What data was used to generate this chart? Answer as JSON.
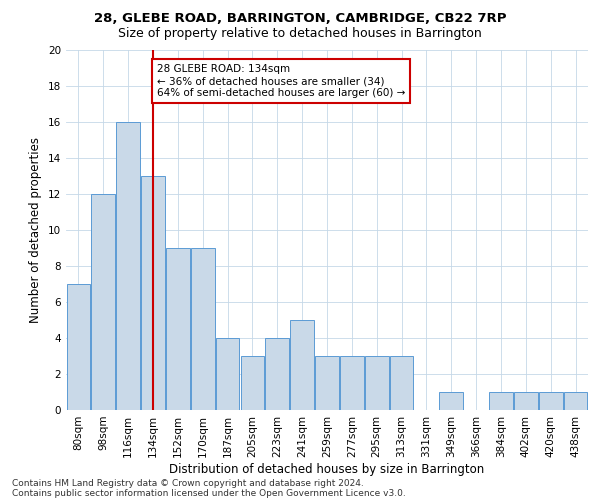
{
  "title1": "28, GLEBE ROAD, BARRINGTON, CAMBRIDGE, CB22 7RP",
  "title2": "Size of property relative to detached houses in Barrington",
  "xlabel": "Distribution of detached houses by size in Barrington",
  "ylabel": "Number of detached properties",
  "footnote1": "Contains HM Land Registry data © Crown copyright and database right 2024.",
  "footnote2": "Contains public sector information licensed under the Open Government Licence v3.0.",
  "categories": [
    "80sqm",
    "98sqm",
    "116sqm",
    "134sqm",
    "152sqm",
    "170sqm",
    "187sqm",
    "205sqm",
    "223sqm",
    "241sqm",
    "259sqm",
    "277sqm",
    "295sqm",
    "313sqm",
    "331sqm",
    "349sqm",
    "366sqm",
    "384sqm",
    "402sqm",
    "420sqm",
    "438sqm"
  ],
  "values": [
    7,
    12,
    16,
    13,
    9,
    9,
    4,
    3,
    4,
    5,
    3,
    3,
    3,
    3,
    0,
    1,
    0,
    1,
    1,
    1,
    1
  ],
  "bar_color": "#c9d9e8",
  "bar_edge_color": "#5b9bd5",
  "highlight_index": 3,
  "highlight_line_color": "#cc0000",
  "ylim": [
    0,
    20
  ],
  "yticks": [
    0,
    2,
    4,
    6,
    8,
    10,
    12,
    14,
    16,
    18,
    20
  ],
  "annotation_text": "28 GLEBE ROAD: 134sqm\n← 36% of detached houses are smaller (34)\n64% of semi-detached houses are larger (60) →",
  "annotation_box_color": "#ffffff",
  "annotation_box_edge": "#cc0000",
  "bg_color": "#ffffff",
  "grid_color": "#c5d8e8",
  "title_fontsize": 9.5,
  "subtitle_fontsize": 9,
  "axis_label_fontsize": 8.5,
  "tick_fontsize": 7.5,
  "annotation_fontsize": 7.5,
  "footnote_fontsize": 6.5
}
